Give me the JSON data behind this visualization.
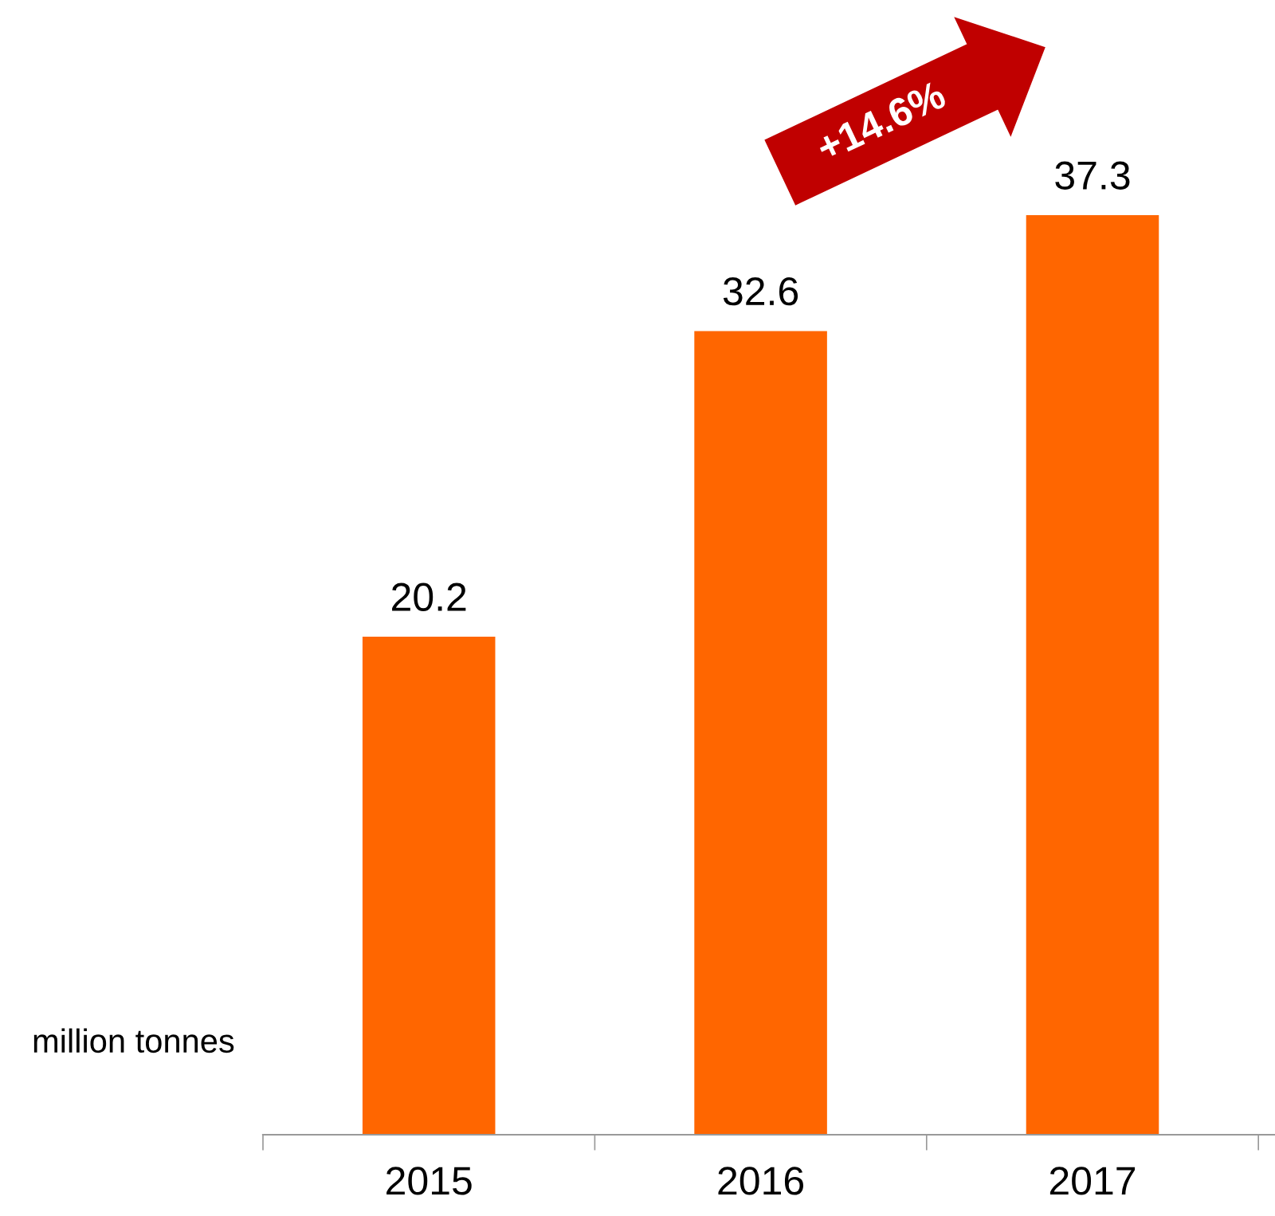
{
  "chart_data": {
    "type": "bar",
    "categories": [
      "2015",
      "2016",
      "2017"
    ],
    "values": [
      20.2,
      32.6,
      37.3
    ],
    "color": "#ff6600",
    "data_labels": true,
    "ylabel": "million tonnes",
    "annotations": [
      "+14.6%"
    ],
    "grid": false,
    "legend": false
  }
}
